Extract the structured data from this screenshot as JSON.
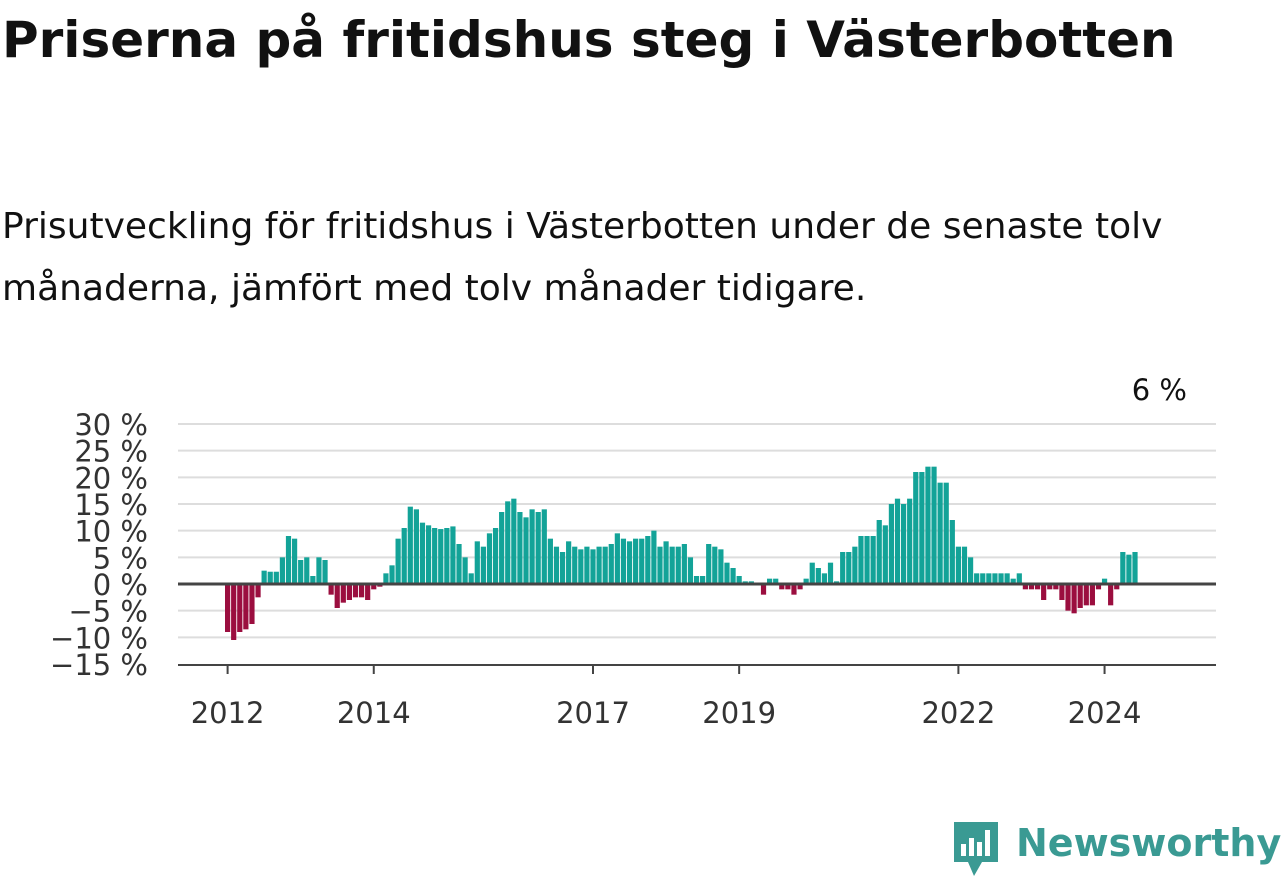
{
  "header": {
    "title": "Priserna på fritidshus steg i Västerbotten",
    "subtitle": "Prisutveckling för fritidshus i Västerbotten under de senaste tolv månaderna, jämfört med tolv månader tidigare."
  },
  "brand": {
    "name": "Newsworthy",
    "color": "#3a9a93",
    "icon": "bar-chart-badge-icon"
  },
  "chart_data": {
    "type": "bar",
    "unit": "%",
    "start": "2012-01",
    "frequency": "monthly",
    "ylim": [
      -15,
      30
    ],
    "yticks": [
      30,
      25,
      20,
      15,
      10,
      5,
      0,
      -5,
      -10,
      -15
    ],
    "ytick_labels": [
      "30 %",
      "25 %",
      "20 %",
      "15 %",
      "10 %",
      "5 %",
      "0 %",
      "−5 %",
      "−10 %",
      "−15 %"
    ],
    "xtick_labels": [
      {
        "label": "2012",
        "index": 0
      },
      {
        "label": "2014",
        "index": 24
      },
      {
        "label": "2017",
        "index": 60
      },
      {
        "label": "2019",
        "index": 84
      },
      {
        "label": "2022",
        "index": 120
      },
      {
        "label": "2024",
        "index": 144
      }
    ],
    "annotation": {
      "label": "6 %",
      "index": 153
    },
    "colors": {
      "positive": "#13a398",
      "negative": "#9b0e3f",
      "grid": "#dddddd",
      "zero": "#444444"
    },
    "grid": true,
    "values": [
      -9,
      -10.5,
      -9,
      -8.5,
      -7.5,
      -2.5,
      2.5,
      2.3,
      2.3,
      5,
      9,
      8.5,
      4.5,
      5,
      1.5,
      5,
      4.5,
      -2,
      -4.5,
      -3.5,
      -3,
      -2.5,
      -2.5,
      -3,
      -1,
      -0.5,
      2,
      3.5,
      8.5,
      10.5,
      14.5,
      14,
      11.5,
      11,
      10.5,
      10.3,
      10.5,
      10.8,
      7.5,
      5,
      2,
      8,
      7,
      9.5,
      10.5,
      13.5,
      15.5,
      16,
      13.5,
      12.5,
      14,
      13.5,
      14,
      8.5,
      7,
      6,
      8,
      7,
      6.5,
      7,
      6.5,
      7,
      7,
      7.5,
      9.5,
      8.5,
      8,
      8.5,
      8.5,
      9,
      10,
      7,
      8,
      7,
      7,
      7.5,
      5,
      1.5,
      1.5,
      7.5,
      7,
      6.5,
      4,
      3,
      1.5,
      0.5,
      0.5,
      0,
      -2,
      1,
      1,
      -1,
      -1,
      -2,
      -1,
      1,
      4,
      3,
      2,
      4,
      0.5,
      6,
      6,
      7,
      9,
      9,
      9,
      12,
      11,
      15,
      16,
      15,
      16,
      21,
      21,
      22,
      22,
      19,
      19,
      12,
      7,
      7,
      5,
      2,
      2,
      2,
      2,
      2,
      2,
      1,
      2,
      -1,
      -1,
      -1,
      -3,
      -1,
      -1,
      -3,
      -5,
      -5.5,
      -4.5,
      -4,
      -4,
      -1,
      1,
      -4,
      -1,
      6,
      5.5,
      6
    ]
  }
}
